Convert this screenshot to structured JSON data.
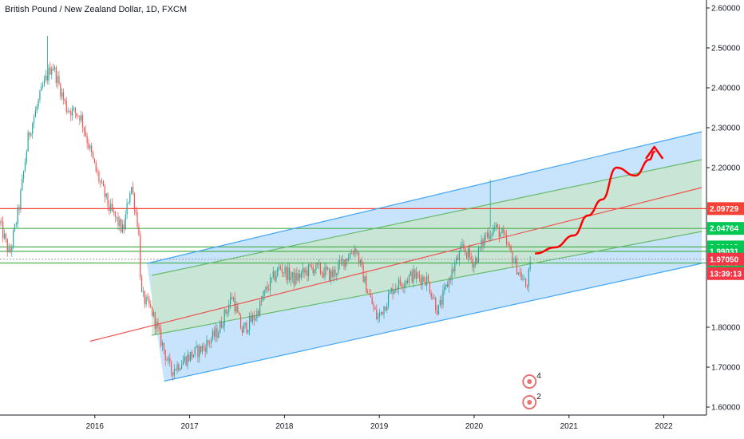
{
  "header": {
    "title": "British Pound / New Zealand Dollar, 1D, FXCM"
  },
  "colors": {
    "up": "#26a69a",
    "down": "#ef5350",
    "channel_outer_fill": "#90caf9",
    "channel_inner_fill": "#c8e6c9",
    "channel_line": "#42a5f5",
    "inner_line": "#66bb6a",
    "median_line": "#ef5350",
    "resistance": "#f44336",
    "support": "#4caf50",
    "arrow": "#ff0000",
    "current_price": "#f23645",
    "support_badge": "#00c853"
  },
  "chart_data": {
    "type": "candlestick",
    "symbol": "GBPNZD",
    "timeframe": "1D",
    "broker": "FXCM",
    "x_axis": {
      "labels": [
        "2016",
        "2017",
        "2018",
        "2019",
        "2020",
        "2021",
        "2022"
      ]
    },
    "y_axis": {
      "range": [
        1.58,
        2.62
      ],
      "ticks": [
        "2.60000",
        "2.50000",
        "2.40000",
        "2.30000",
        "2.20000",
        "1.80000",
        "1.70000",
        "1.60000"
      ]
    },
    "price_path": [
      [
        2015.0,
        2.06
      ],
      [
        2015.1,
        1.98
      ],
      [
        2015.2,
        2.1
      ],
      [
        2015.3,
        2.28
      ],
      [
        2015.45,
        2.4
      ],
      [
        2015.55,
        2.46
      ],
      [
        2015.7,
        2.35
      ],
      [
        2015.85,
        2.33
      ],
      [
        2016.0,
        2.2
      ],
      [
        2016.15,
        2.1
      ],
      [
        2016.3,
        2.04
      ],
      [
        2016.38,
        2.16
      ],
      [
        2016.46,
        2.05
      ],
      [
        2016.49,
        1.88
      ],
      [
        2016.6,
        1.84
      ],
      [
        2016.8,
        1.69
      ],
      [
        2016.95,
        1.72
      ],
      [
        2017.15,
        1.75
      ],
      [
        2017.3,
        1.79
      ],
      [
        2017.45,
        1.88
      ],
      [
        2017.55,
        1.79
      ],
      [
        2017.7,
        1.83
      ],
      [
        2017.8,
        1.89
      ],
      [
        2017.95,
        1.95
      ],
      [
        2018.1,
        1.92
      ],
      [
        2018.3,
        1.95
      ],
      [
        2018.5,
        1.93
      ],
      [
        2018.6,
        1.96
      ],
      [
        2018.75,
        2.0
      ],
      [
        2018.85,
        1.91
      ],
      [
        2018.98,
        1.82
      ],
      [
        2019.15,
        1.9
      ],
      [
        2019.35,
        1.93
      ],
      [
        2019.5,
        1.92
      ],
      [
        2019.62,
        1.84
      ],
      [
        2019.75,
        1.93
      ],
      [
        2019.88,
        2.0
      ],
      [
        2020.0,
        1.96
      ],
      [
        2020.12,
        2.03
      ],
      [
        2020.22,
        2.05
      ],
      [
        2020.3,
        2.03
      ],
      [
        2020.45,
        1.95
      ],
      [
        2020.55,
        1.9
      ],
      [
        2020.6,
        1.96
      ]
    ],
    "spike": {
      "x": 2020.17,
      "y": 2.17
    },
    "drawings": {
      "channel_upper": [
        [
          2016.55,
          1.96
        ],
        [
          2022.4,
          2.29
        ]
      ],
      "channel_lower": [
        [
          2016.73,
          1.665
        ],
        [
          2022.4,
          1.96
        ]
      ],
      "inner_upper": [
        [
          2016.6,
          1.93
        ],
        [
          2022.4,
          2.22
        ]
      ],
      "inner_lower": [
        [
          2016.6,
          1.78
        ],
        [
          2022.4,
          2.04
        ]
      ],
      "median_line": [
        [
          2015.95,
          1.765
        ],
        [
          2022.4,
          2.15
        ]
      ],
      "projected_path": [
        [
          2020.65,
          1.985
        ],
        [
          2020.85,
          2.0
        ],
        [
          2021.05,
          2.03
        ],
        [
          2021.2,
          2.08
        ],
        [
          2021.35,
          2.12
        ],
        [
          2021.5,
          2.2
        ],
        [
          2021.7,
          2.18
        ],
        [
          2021.85,
          2.22
        ],
        [
          2021.9,
          2.24
        ]
      ]
    },
    "horizontal_levels": [
      {
        "value": 2.09729,
        "label": "2.09729",
        "kind": "resistance"
      },
      {
        "value": 2.04764,
        "label": "2.04764",
        "kind": "support"
      },
      {
        "value": 2.00118,
        "label": "2.00118",
        "kind": "support"
      },
      {
        "value": 1.99031,
        "label": "1.99031",
        "kind": "support"
      },
      {
        "value": 1.96105,
        "label": "1.96105",
        "kind": "support"
      }
    ],
    "current_price": {
      "value": 1.9705,
      "label": "1.97050",
      "countdown": "13:39:13"
    },
    "events": [
      {
        "count": "4"
      },
      {
        "count": "2"
      }
    ]
  }
}
